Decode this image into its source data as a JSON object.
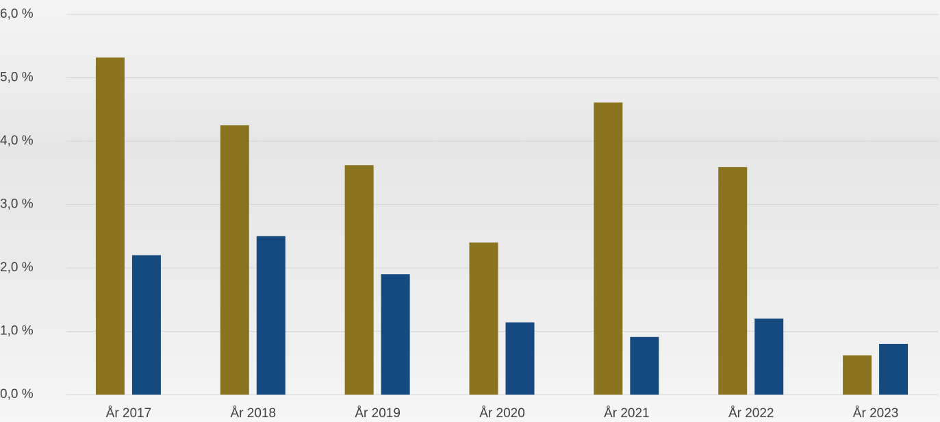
{
  "chart_data": {
    "type": "bar",
    "categories": [
      "År 2017",
      "År 2018",
      "År 2019",
      "År 2020",
      "År 2021",
      "År 2022",
      "År 2023"
    ],
    "series": [
      {
        "color": "#8b7420",
        "values": [
          5.32,
          4.25,
          3.62,
          2.4,
          4.61,
          3.59,
          0.62
        ]
      },
      {
        "color": "#154a80",
        "values": [
          2.2,
          2.5,
          1.9,
          1.14,
          0.91,
          1.2,
          0.8
        ]
      }
    ],
    "ylim": [
      0,
      6
    ],
    "yticks": [
      {
        "value": 0,
        "label": "0,0 %"
      },
      {
        "value": 1,
        "label": "1,0 %"
      },
      {
        "value": 2,
        "label": "2,0 %"
      },
      {
        "value": 3,
        "label": "3,0 %"
      },
      {
        "value": 4,
        "label": "4,0 %"
      },
      {
        "value": 5,
        "label": "5,0 %"
      },
      {
        "value": 6,
        "label": "6,0 %"
      }
    ],
    "grid": true
  }
}
